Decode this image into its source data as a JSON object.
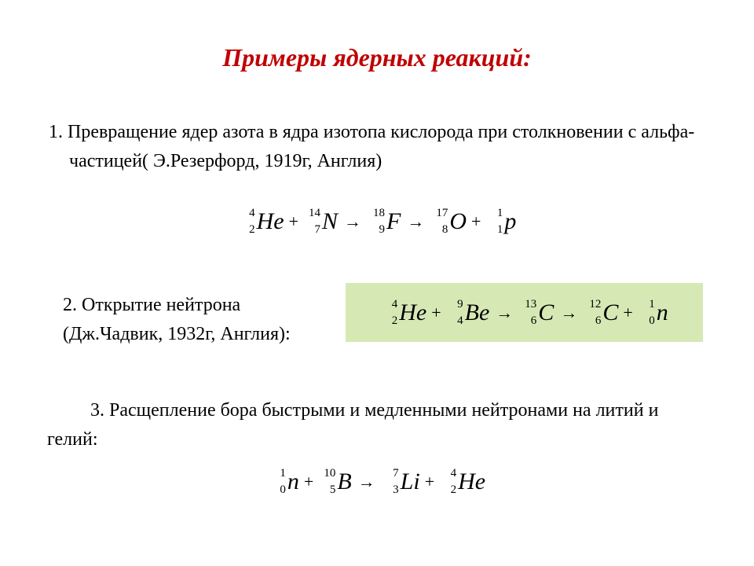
{
  "title": "Примеры ядерных реакций:",
  "title_color": "#c00000",
  "title_fontsize": 32,
  "body_fontsize": 24,
  "formula_symbol_fontsize": 30,
  "formula_script_fontsize": 15,
  "background_color": "#ffffff",
  "highlight_box_color": "#d6e9b5",
  "item1": {
    "number": "1.",
    "text": "Превращение ядер азота в ядра изотопа кислорода при столкновении с альфа-частицей( Э.Резерфорд, 1919г, Англия)"
  },
  "formula1": {
    "terms": [
      {
        "mass": "4",
        "charge": "2",
        "symbol": "He"
      },
      {
        "op": "+"
      },
      {
        "mass": "14",
        "charge": "7",
        "symbol": "N"
      },
      {
        "arrow": "→"
      },
      {
        "mass": "18",
        "charge": "9",
        "symbol": "F"
      },
      {
        "arrow": "→"
      },
      {
        "mass": "17",
        "charge": "8",
        "symbol": "O"
      },
      {
        "op": "+"
      },
      {
        "mass": "1",
        "charge": "1",
        "symbol": "p"
      }
    ]
  },
  "item2": {
    "line1": "2. Открытие нейтрона",
    "line2": "(Дж.Чадвик, 1932г, Англия):"
  },
  "formula2": {
    "terms": [
      {
        "mass": "4",
        "charge": "2",
        "symbol": "He"
      },
      {
        "op": "+"
      },
      {
        "mass": "9",
        "charge": "4",
        "symbol": "Be"
      },
      {
        "arrow": "→"
      },
      {
        "mass": "13",
        "charge": "6",
        "symbol": "C"
      },
      {
        "arrow": "→"
      },
      {
        "mass": "12",
        "charge": "6",
        "symbol": "C"
      },
      {
        "op": "+"
      },
      {
        "mass": "1",
        "charge": "0",
        "symbol": "n"
      }
    ]
  },
  "item3": {
    "text": "3. Расщепление бора быстрыми и медленными нейтронами на литий и гелий:"
  },
  "formula3": {
    "terms": [
      {
        "mass": "1",
        "charge": "0",
        "symbol": "n"
      },
      {
        "op": "+"
      },
      {
        "mass": "10",
        "charge": "5",
        "symbol": "B"
      },
      {
        "arrow": "→"
      },
      {
        "mass": "7",
        "charge": "3",
        "symbol": "Li"
      },
      {
        "op": "+"
      },
      {
        "mass": "4",
        "charge": "2",
        "symbol": "He"
      }
    ]
  }
}
